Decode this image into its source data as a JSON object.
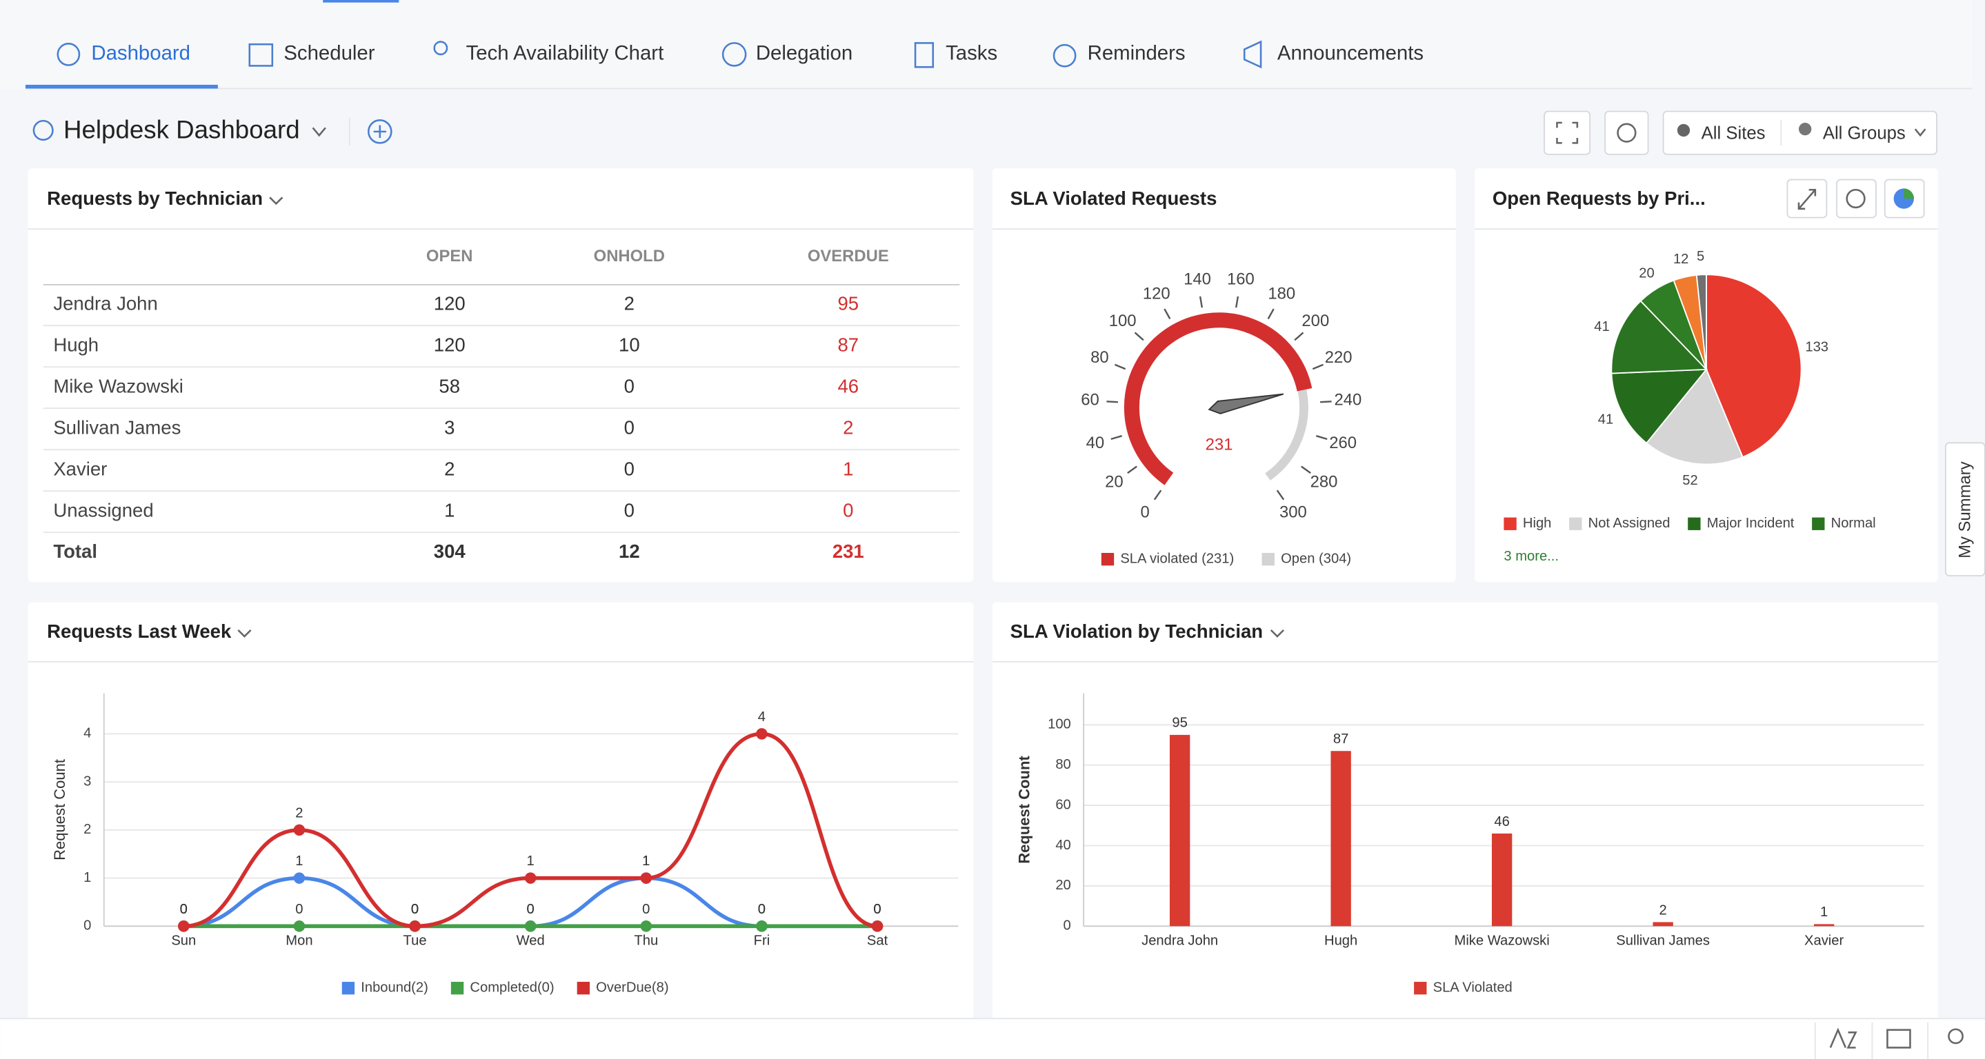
{
  "nav": [
    "Dashboard",
    "Scheduler",
    "Tech Availability Chart",
    "Delegation",
    "Tasks",
    "Reminders",
    "Announcements"
  ],
  "header": {
    "title": "Helpdesk Dashboard",
    "sites": "All Sites",
    "groups": "All Groups"
  },
  "side_tab": "My Summary",
  "table": {
    "title": "Requests by Technician",
    "columns": [
      "OPEN",
      "ONHOLD",
      "OVERDUE"
    ],
    "rows": [
      [
        "Jendra John",
        120,
        2,
        95
      ],
      [
        "Hugh",
        120,
        10,
        87
      ],
      [
        "Mike Wazowski",
        58,
        0,
        46
      ],
      [
        "Sullivan James",
        3,
        0,
        2
      ],
      [
        "Xavier",
        2,
        0,
        1
      ],
      [
        "Unassigned",
        1,
        0,
        0
      ]
    ],
    "total": [
      "Total",
      304,
      12,
      231
    ]
  },
  "chart_data": [
    {
      "type": "gauge",
      "title": "SLA Violated Requests",
      "value": 231,
      "color": "#d32f2f",
      "track_color": "#d3d3d3",
      "ylim": [
        0,
        300
      ],
      "yticks": [
        0,
        20,
        40,
        60,
        80,
        100,
        120,
        140,
        160,
        180,
        200,
        220,
        240,
        260,
        280,
        300
      ],
      "series": [
        {
          "name": "SLA violated (231)",
          "color": "#d32f2f"
        },
        {
          "name": "Open (304)",
          "color": "#d3d3d3"
        }
      ]
    },
    {
      "type": "pie",
      "title": "Open Requests by Pri...",
      "categories": [
        "High",
        "Not Assigned",
        "Major Incident",
        "Normal",
        null,
        null,
        null
      ],
      "values": [
        133,
        52,
        41,
        41,
        20,
        12,
        5
      ],
      "colors": [
        "#e8392e",
        "#d5d5d5",
        "#256b1c",
        "#2a7320",
        "#2f7d24",
        "#f07a2e",
        "#707070"
      ],
      "more": "3 more..."
    },
    {
      "type": "line",
      "title": "Requests Last Week",
      "ylabel": "Request Count",
      "categories": [
        "Sun",
        "Mon",
        "Tue",
        "Wed",
        "Thu",
        "Fri",
        "Sat"
      ],
      "ylim": [
        0,
        5
      ],
      "yticks": [
        0,
        1,
        2,
        3,
        4
      ],
      "grid": true,
      "series": [
        {
          "name": "Inbound(2)",
          "color": "#4a86e8",
          "values": [
            0,
            1,
            0,
            0,
            1,
            0,
            0
          ]
        },
        {
          "name": "Completed(0)",
          "color": "#43a047",
          "values": [
            0,
            0,
            0,
            0,
            0,
            0,
            0
          ]
        },
        {
          "name": "OverDue(8)",
          "color": "#d32f2f",
          "values": [
            0,
            2,
            0,
            1,
            1,
            4,
            0
          ]
        }
      ]
    },
    {
      "type": "bar",
      "title": "SLA Violation by Technician",
      "ylabel": "Request Count",
      "categories": [
        "Jendra John",
        "Hugh",
        "Mike Wazowski",
        "Sullivan James",
        "Xavier"
      ],
      "values": [
        95,
        87,
        46,
        2,
        1
      ],
      "color": "#d93b30",
      "ylim": [
        0,
        115
      ],
      "yticks": [
        0,
        20,
        40,
        60,
        80,
        100
      ],
      "grid": true,
      "series": [
        {
          "name": "SLA Violated",
          "color": "#d93b30"
        }
      ]
    }
  ]
}
